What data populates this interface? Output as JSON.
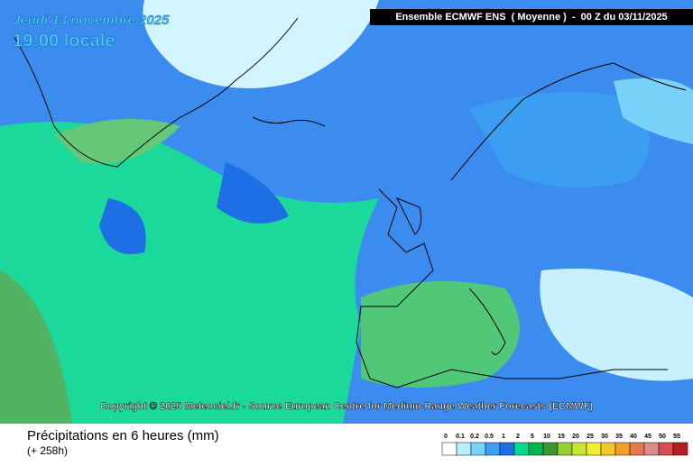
{
  "header": {
    "date": "Jeudi 13 novembre 2025",
    "time": "19:00 locale",
    "model": "Ensemble ECMWF ENS  ( Moyenne )  -  00 Z du 03/11/2025"
  },
  "copyright": "Copyright © 2025 Meteociel.fr - Source European Centre for Medium-Range Weather Forecasts (ECMWF)",
  "footer": {
    "title": "Précipitations en 6 heures (mm)",
    "lead": "(+ 258h)"
  },
  "legend": {
    "steps": [
      {
        "label": "0",
        "color": "#ffffff"
      },
      {
        "label": "0.1",
        "color": "#b4f0ff"
      },
      {
        "label": "0.2",
        "color": "#78d2fa"
      },
      {
        "label": "0.5",
        "color": "#3ca0f0"
      },
      {
        "label": "1",
        "color": "#1e6ee6"
      },
      {
        "label": "2",
        "color": "#00dc8c"
      },
      {
        "label": "5",
        "color": "#00b450"
      },
      {
        "label": "10",
        "color": "#3c9632"
      },
      {
        "label": "15",
        "color": "#96d232"
      },
      {
        "label": "20",
        "color": "#c8e632"
      },
      {
        "label": "25",
        "color": "#f0f032"
      },
      {
        "label": "30",
        "color": "#f0c828"
      },
      {
        "label": "35",
        "color": "#f0a028"
      },
      {
        "label": "40",
        "color": "#e67850"
      },
      {
        "label": "45",
        "color": "#dc8c8c"
      },
      {
        "label": "50",
        "color": "#d25050"
      },
      {
        "label": "55",
        "color": "#b41e1e"
      }
    ]
  }
}
